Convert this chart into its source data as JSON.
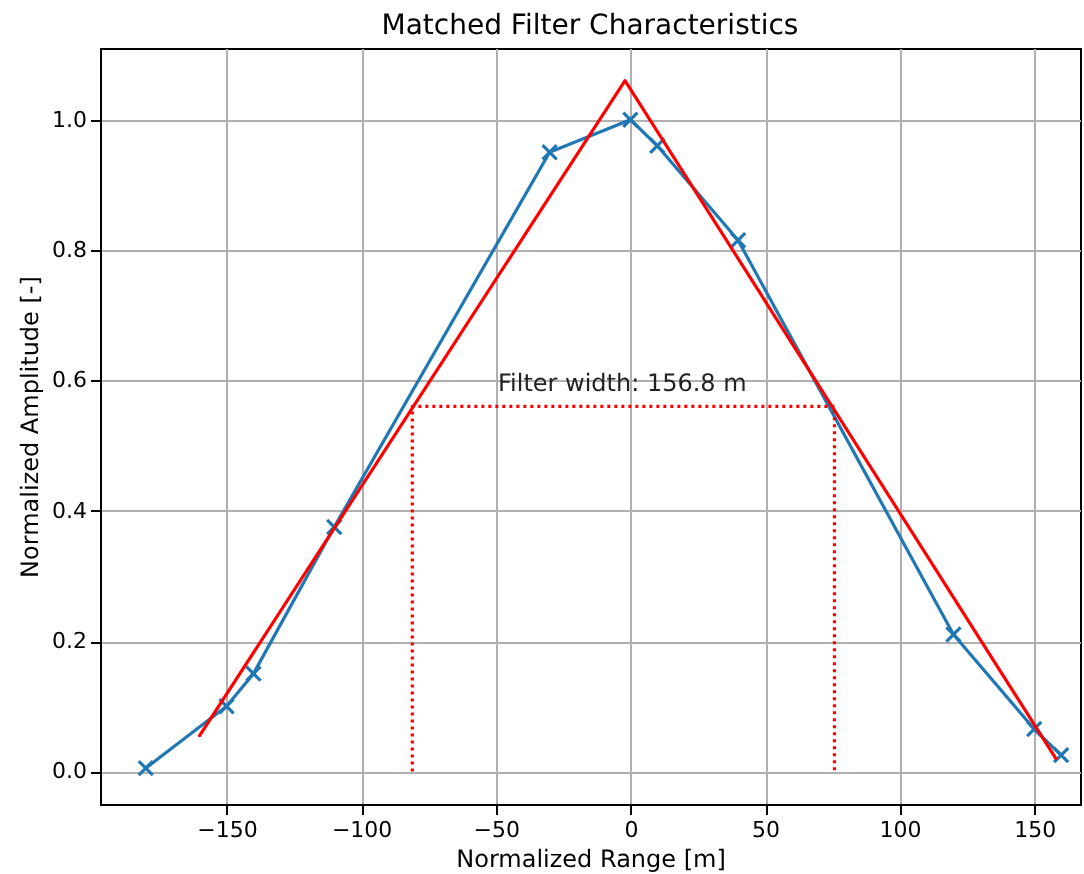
{
  "chart_data": {
    "type": "line",
    "title": "Matched Filter Characteristics",
    "xlabel": "Normalized Range [m]",
    "ylabel": "Normalized Amplitude [-]",
    "xlim": [
      -197,
      167
    ],
    "ylim": [
      -0.05,
      1.11
    ],
    "xticks": [
      -150,
      -100,
      -50,
      0,
      50,
      100,
      150
    ],
    "yticks": [
      {
        "value": 0,
        "label": "0.0"
      },
      0.2,
      0.4,
      0.6,
      0.8,
      {
        "value": 1,
        "label": "1.0"
      }
    ],
    "grid": true,
    "series": [
      {
        "color": "#1f77b4",
        "marker": "cross",
        "line_style": "solid",
        "x": [
          -180,
          -150,
          -140,
          -110,
          -30,
          0,
          10,
          40,
          120,
          150,
          160
        ],
        "values": [
          0.005,
          0.1,
          0.15,
          0.375,
          0.95,
          1.0,
          0.96,
          0.815,
          0.21,
          0.065,
          0.025
        ]
      },
      {
        "color": "#ff0000",
        "marker": "none",
        "line_style": "solid",
        "x": [
          -160,
          -2,
          158
        ],
        "values": [
          0.055,
          1.06,
          0.02
        ]
      },
      {
        "color": "#ff0000",
        "marker": "none",
        "line_style": "dotted",
        "x": [
          -81,
          -81,
          75.8,
          75.8
        ],
        "values": [
          0,
          0.56,
          0.56,
          0
        ]
      }
    ],
    "annotations": [
      {
        "text": "Filter width: 156.8 m",
        "x": -3,
        "y": 0.575
      }
    ]
  }
}
